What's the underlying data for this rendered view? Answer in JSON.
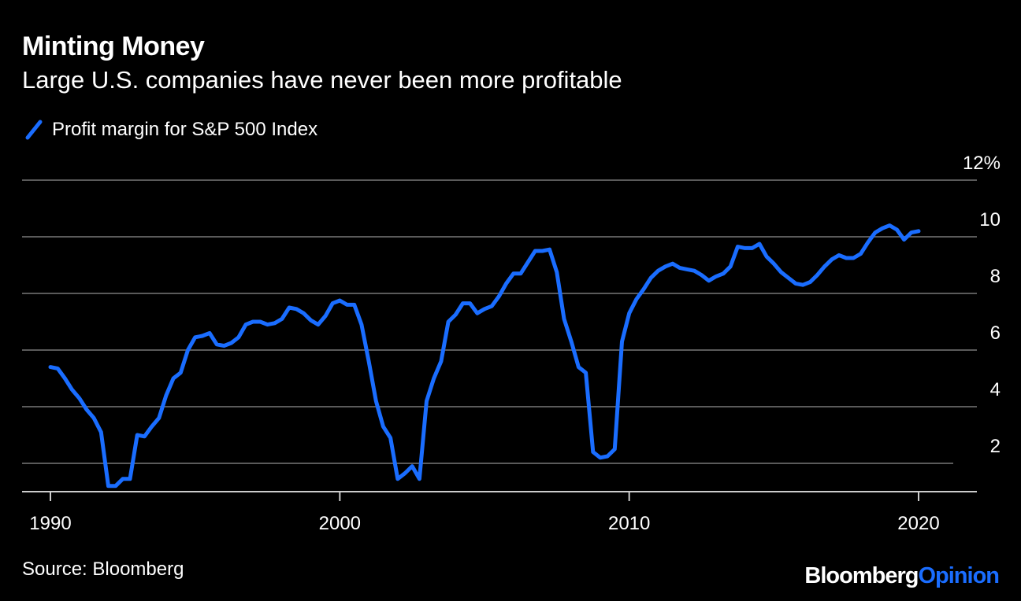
{
  "chart_data": {
    "type": "line",
    "title": "Minting Money",
    "subtitle": "Large U.S. companies have never been more profitable",
    "xlabel": "",
    "ylabel": "",
    "x_ticks": [
      "1990",
      "2000",
      "2010",
      "2020"
    ],
    "y_ticks": [
      "12%",
      "10",
      "8",
      "6",
      "4",
      "2"
    ],
    "xlim": [
      1989.9,
      2021.3
    ],
    "ylim": [
      1,
      12
    ],
    "grid": true,
    "legend_position": "top-left",
    "series": [
      {
        "name": "Profit margin for S&P 500 Index",
        "color": "#1a6dff",
        "points": [
          [
            1990.0,
            5.4
          ],
          [
            1990.25,
            5.35
          ],
          [
            1990.5,
            5.0
          ],
          [
            1990.75,
            4.6
          ],
          [
            1991.0,
            4.3
          ],
          [
            1991.25,
            3.9
          ],
          [
            1991.5,
            3.6
          ],
          [
            1991.75,
            3.1
          ],
          [
            1992.0,
            1.2
          ],
          [
            1992.25,
            1.2
          ],
          [
            1992.5,
            1.45
          ],
          [
            1992.75,
            1.45
          ],
          [
            1993.0,
            3.0
          ],
          [
            1993.25,
            2.95
          ],
          [
            1993.5,
            3.3
          ],
          [
            1993.75,
            3.6
          ],
          [
            1994.0,
            4.4
          ],
          [
            1994.25,
            5.0
          ],
          [
            1994.5,
            5.2
          ],
          [
            1994.75,
            6.0
          ],
          [
            1995.0,
            6.45
          ],
          [
            1995.25,
            6.5
          ],
          [
            1995.5,
            6.6
          ],
          [
            1995.75,
            6.2
          ],
          [
            1996.0,
            6.15
          ],
          [
            1996.25,
            6.25
          ],
          [
            1996.5,
            6.45
          ],
          [
            1996.75,
            6.9
          ],
          [
            1997.0,
            7.0
          ],
          [
            1997.25,
            7.0
          ],
          [
            1997.5,
            6.9
          ],
          [
            1997.75,
            6.95
          ],
          [
            1998.0,
            7.1
          ],
          [
            1998.25,
            7.5
          ],
          [
            1998.5,
            7.45
          ],
          [
            1998.75,
            7.3
          ],
          [
            1999.0,
            7.05
          ],
          [
            1999.25,
            6.9
          ],
          [
            1999.5,
            7.2
          ],
          [
            1999.75,
            7.65
          ],
          [
            2000.0,
            7.75
          ],
          [
            2000.25,
            7.6
          ],
          [
            2000.5,
            7.6
          ],
          [
            2000.75,
            6.9
          ],
          [
            2001.0,
            5.6
          ],
          [
            2001.25,
            4.2
          ],
          [
            2001.5,
            3.3
          ],
          [
            2001.75,
            2.9
          ],
          [
            2002.0,
            1.45
          ],
          [
            2002.25,
            1.65
          ],
          [
            2002.5,
            1.9
          ],
          [
            2002.75,
            1.45
          ],
          [
            2003.0,
            4.2
          ],
          [
            2003.25,
            5.0
          ],
          [
            2003.5,
            5.6
          ],
          [
            2003.75,
            7.0
          ],
          [
            2004.0,
            7.25
          ],
          [
            2004.25,
            7.65
          ],
          [
            2004.5,
            7.65
          ],
          [
            2004.75,
            7.3
          ],
          [
            2005.0,
            7.45
          ],
          [
            2005.25,
            7.55
          ],
          [
            2005.5,
            7.9
          ],
          [
            2005.75,
            8.35
          ],
          [
            2006.0,
            8.7
          ],
          [
            2006.25,
            8.7
          ],
          [
            2006.5,
            9.1
          ],
          [
            2006.75,
            9.5
          ],
          [
            2007.0,
            9.5
          ],
          [
            2007.25,
            9.55
          ],
          [
            2007.5,
            8.75
          ],
          [
            2007.75,
            7.1
          ],
          [
            2008.0,
            6.3
          ],
          [
            2008.25,
            5.4
          ],
          [
            2008.5,
            5.2
          ],
          [
            2008.75,
            2.4
          ],
          [
            2009.0,
            2.2
          ],
          [
            2009.25,
            2.25
          ],
          [
            2009.5,
            2.5
          ],
          [
            2009.75,
            6.3
          ],
          [
            2010.0,
            7.3
          ],
          [
            2010.25,
            7.8
          ],
          [
            2010.5,
            8.15
          ],
          [
            2010.75,
            8.55
          ],
          [
            2011.0,
            8.8
          ],
          [
            2011.25,
            8.95
          ],
          [
            2011.5,
            9.05
          ],
          [
            2011.75,
            8.9
          ],
          [
            2012.0,
            8.85
          ],
          [
            2012.25,
            8.8
          ],
          [
            2012.5,
            8.65
          ],
          [
            2012.75,
            8.45
          ],
          [
            2013.0,
            8.6
          ],
          [
            2013.25,
            8.7
          ],
          [
            2013.5,
            8.95
          ],
          [
            2013.75,
            9.65
          ],
          [
            2014.0,
            9.6
          ],
          [
            2014.25,
            9.6
          ],
          [
            2014.5,
            9.75
          ],
          [
            2014.75,
            9.3
          ],
          [
            2015.0,
            9.05
          ],
          [
            2015.25,
            8.75
          ],
          [
            2015.5,
            8.55
          ],
          [
            2015.75,
            8.35
          ],
          [
            2016.0,
            8.3
          ],
          [
            2016.25,
            8.4
          ],
          [
            2016.5,
            8.65
          ],
          [
            2016.75,
            8.95
          ],
          [
            2017.0,
            9.2
          ],
          [
            2017.25,
            9.35
          ],
          [
            2017.5,
            9.25
          ],
          [
            2017.75,
            9.25
          ],
          [
            2018.0,
            9.4
          ],
          [
            2018.25,
            9.8
          ],
          [
            2018.5,
            10.15
          ],
          [
            2018.75,
            10.3
          ],
          [
            2019.0,
            10.4
          ],
          [
            2019.25,
            10.25
          ],
          [
            2019.5,
            9.9
          ],
          [
            2019.75,
            10.15
          ],
          [
            2020.0,
            10.2
          ]
        ]
      }
    ]
  },
  "footer": {
    "source": "Source: Bloomberg",
    "brand_main": "Bloomberg",
    "brand_sub": "Opinion",
    "brand_sub_color": "#1a6dff"
  }
}
